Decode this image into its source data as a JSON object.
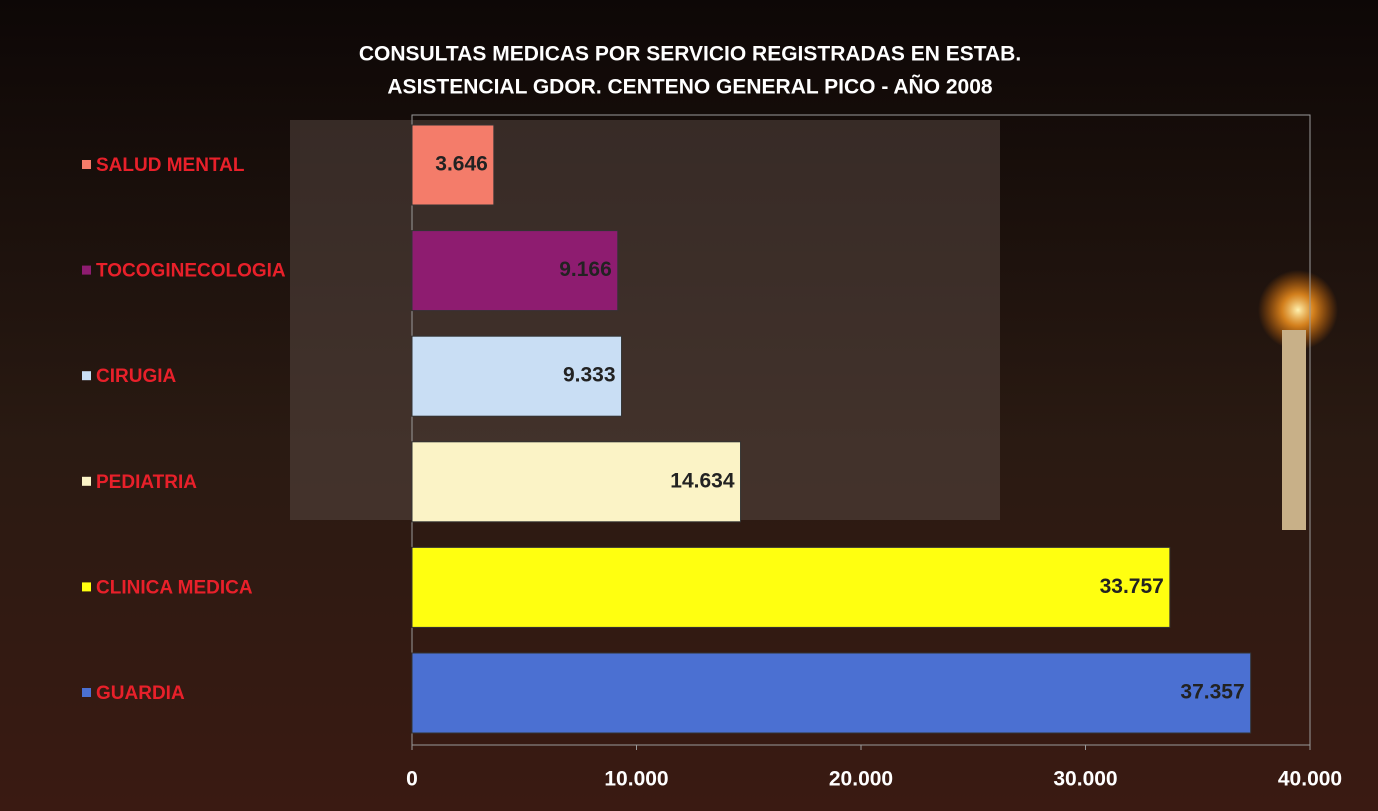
{
  "chart_data": {
    "type": "hbar",
    "title": [
      "CONSULTAS MEDICAS POR SERVICIO REGISTRADAS EN ESTAB.",
      "ASISTENCIAL GDOR. CENTENO GENERAL PICO - AÑO 2008"
    ],
    "categories": [
      "SALUD MENTAL",
      "TOCOGINECOLOGIA",
      "CIRUGIA",
      "PEDIATRIA",
      "CLINICA MEDICA",
      "GUARDIA"
    ],
    "values": [
      3646,
      9166,
      9333,
      14634,
      33757,
      37357
    ],
    "value_labels": [
      "3.646",
      "9.166",
      "9.333",
      "14.634",
      "33.757",
      "37.357"
    ],
    "colors": [
      "#f47c6a",
      "#8e1c70",
      "#c9def4",
      "#fbf3c6",
      "#ffff10",
      "#4b70d2"
    ],
    "xlim": [
      0,
      40000
    ],
    "xticks": [
      0,
      {
        "value": 10000,
        "label": "10.000"
      },
      {
        "value": 20000,
        "label": "20.000"
      },
      {
        "value": 30000,
        "label": "30.000"
      },
      {
        "value": 40000,
        "label": "40.000"
      }
    ]
  }
}
